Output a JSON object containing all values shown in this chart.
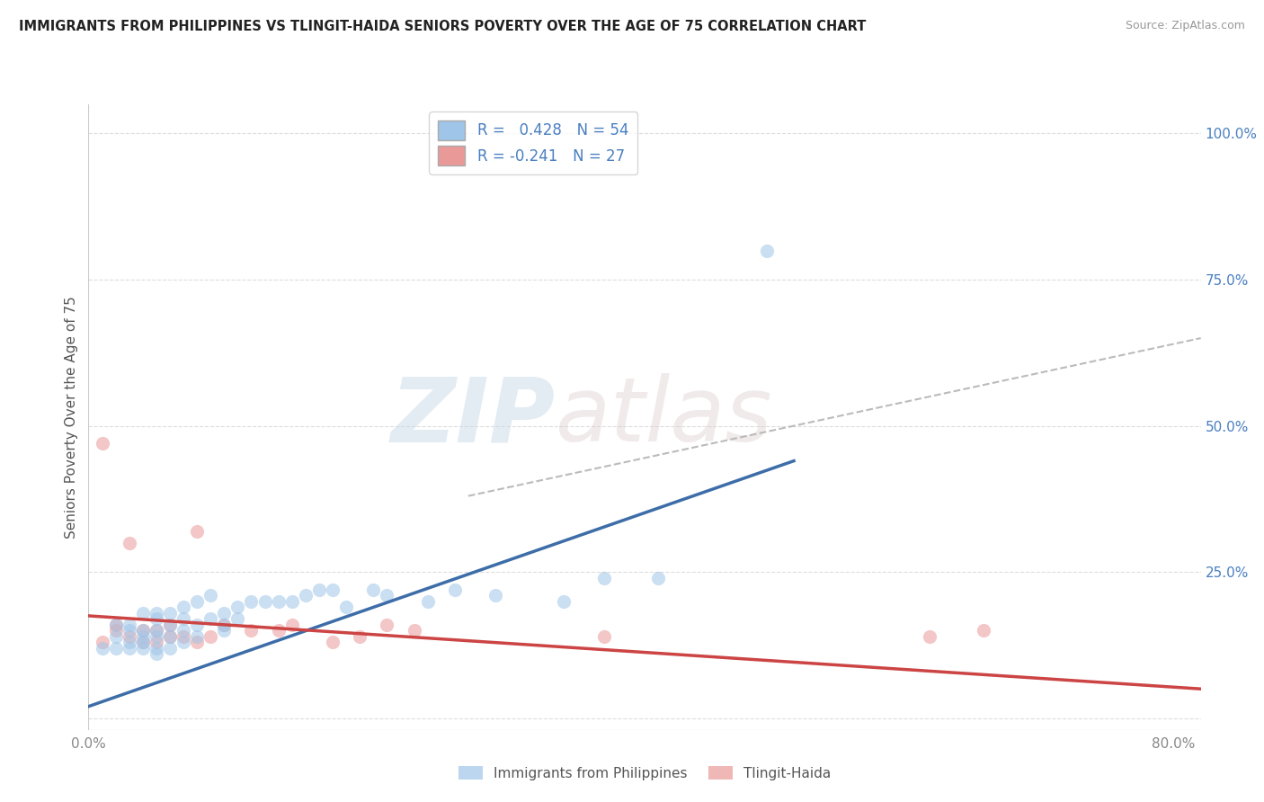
{
  "title": "IMMIGRANTS FROM PHILIPPINES VS TLINGIT-HAIDA SENIORS POVERTY OVER THE AGE OF 75 CORRELATION CHART",
  "source": "Source: ZipAtlas.com",
  "ylabel": "Seniors Poverty Over the Age of 75",
  "xlim": [
    0.0,
    0.82
  ],
  "ylim": [
    -0.02,
    1.05
  ],
  "xticks": [
    0.0,
    0.2,
    0.4,
    0.6,
    0.8
  ],
  "xticklabels": [
    "0.0%",
    "",
    "",
    "",
    "80.0%"
  ],
  "yticks_right": [
    0.0,
    0.25,
    0.5,
    0.75,
    1.0
  ],
  "yticklabels_right": [
    "",
    "25.0%",
    "50.0%",
    "75.0%",
    "100.0%"
  ],
  "blue_color": "#9fc5e8",
  "pink_color": "#ea9999",
  "blue_line_color": "#3d6da8",
  "pink_line_color": "#cc4444",
  "dashed_line_color": "#bbbbbb",
  "legend_R1": "R =  0.428",
  "legend_N1": "N = 54",
  "legend_R2": "R = -0.241",
  "legend_N2": "N = 27",
  "blue_scatter_x": [
    0.01,
    0.02,
    0.02,
    0.02,
    0.03,
    0.03,
    0.03,
    0.03,
    0.04,
    0.04,
    0.04,
    0.04,
    0.04,
    0.05,
    0.05,
    0.05,
    0.05,
    0.05,
    0.05,
    0.06,
    0.06,
    0.06,
    0.06,
    0.07,
    0.07,
    0.07,
    0.07,
    0.08,
    0.08,
    0.08,
    0.09,
    0.09,
    0.1,
    0.1,
    0.1,
    0.11,
    0.11,
    0.12,
    0.13,
    0.14,
    0.15,
    0.16,
    0.17,
    0.18,
    0.19,
    0.21,
    0.22,
    0.25,
    0.27,
    0.3,
    0.35,
    0.38,
    0.42,
    0.5
  ],
  "blue_scatter_y": [
    0.12,
    0.12,
    0.14,
    0.16,
    0.12,
    0.13,
    0.15,
    0.16,
    0.12,
    0.13,
    0.14,
    0.15,
    0.18,
    0.11,
    0.12,
    0.14,
    0.15,
    0.17,
    0.18,
    0.12,
    0.14,
    0.16,
    0.18,
    0.13,
    0.15,
    0.17,
    0.19,
    0.14,
    0.16,
    0.2,
    0.17,
    0.21,
    0.15,
    0.16,
    0.18,
    0.17,
    0.19,
    0.2,
    0.2,
    0.2,
    0.2,
    0.21,
    0.22,
    0.22,
    0.19,
    0.22,
    0.21,
    0.2,
    0.22,
    0.21,
    0.2,
    0.24,
    0.24,
    0.8
  ],
  "pink_scatter_x": [
    0.01,
    0.01,
    0.02,
    0.02,
    0.03,
    0.03,
    0.04,
    0.04,
    0.05,
    0.05,
    0.06,
    0.06,
    0.07,
    0.08,
    0.08,
    0.09,
    0.1,
    0.12,
    0.14,
    0.15,
    0.18,
    0.2,
    0.22,
    0.24,
    0.38,
    0.62,
    0.66
  ],
  "pink_scatter_y": [
    0.13,
    0.47,
    0.15,
    0.16,
    0.14,
    0.3,
    0.13,
    0.15,
    0.13,
    0.15,
    0.14,
    0.16,
    0.14,
    0.13,
    0.32,
    0.14,
    0.16,
    0.15,
    0.15,
    0.16,
    0.13,
    0.14,
    0.16,
    0.15,
    0.14,
    0.14,
    0.15
  ],
  "blue_trendline_x": [
    0.0,
    0.52
  ],
  "blue_trendline_y": [
    0.02,
    0.44
  ],
  "pink_trendline_x": [
    0.0,
    0.82
  ],
  "pink_trendline_y": [
    0.175,
    0.05
  ],
  "dashed_trendline_x": [
    0.28,
    0.82
  ],
  "dashed_trendline_y": [
    0.38,
    0.65
  ],
  "background_color": "#ffffff",
  "grid_color": "#dddddd"
}
